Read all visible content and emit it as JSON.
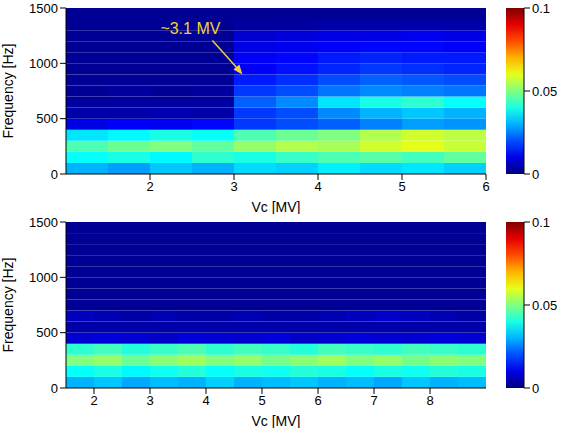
{
  "chart_data": [
    {
      "type": "heatmap",
      "x_label": "Vc [MV]",
      "y_label": "Frequency [Hz]",
      "xlim": [
        1,
        6
      ],
      "xticks": [
        2,
        3,
        4,
        5,
        6
      ],
      "ylim": [
        0,
        1500
      ],
      "yticks": [
        0,
        500,
        1000,
        1500
      ],
      "annotation": {
        "text": "~3.1 MV",
        "x": 3.1,
        "y": 900
      },
      "x_edges": [
        1,
        1.5,
        2,
        2.5,
        3,
        3.5,
        4,
        4.5,
        5,
        5.5,
        6
      ],
      "y_edges": [
        0,
        100,
        200,
        300,
        400,
        500,
        600,
        700,
        800,
        900,
        1000,
        1100,
        1200,
        1300,
        1400,
        1500
      ],
      "cells": [
        [
          0.03,
          0.028,
          0.032,
          0.03,
          0.034,
          0.033,
          0.036,
          0.034,
          0.035,
          0.033
        ],
        [
          0.038,
          0.04,
          0.037,
          0.042,
          0.04,
          0.043,
          0.045,
          0.046,
          0.044,
          0.047
        ],
        [
          0.045,
          0.048,
          0.05,
          0.047,
          0.052,
          0.055,
          0.054,
          0.058,
          0.06,
          0.057
        ],
        [
          0.035,
          0.037,
          0.04,
          0.038,
          0.045,
          0.048,
          0.05,
          0.055,
          0.058,
          0.056
        ],
        [
          0.01,
          0.012,
          0.011,
          0.013,
          0.018,
          0.02,
          0.022,
          0.025,
          0.028,
          0.027
        ],
        [
          0.004,
          0.004,
          0.005,
          0.004,
          0.018,
          0.02,
          0.026,
          0.03,
          0.032,
          0.03
        ],
        [
          0.003,
          0.003,
          0.003,
          0.003,
          0.022,
          0.026,
          0.035,
          0.04,
          0.042,
          0.038
        ],
        [
          0.002,
          0.003,
          0.002,
          0.003,
          0.018,
          0.02,
          0.024,
          0.026,
          0.025,
          0.024
        ],
        [
          0.002,
          0.002,
          0.002,
          0.002,
          0.015,
          0.017,
          0.02,
          0.022,
          0.021,
          0.02
        ],
        [
          0.002,
          0.002,
          0.002,
          0.002,
          0.012,
          0.014,
          0.016,
          0.018,
          0.017,
          0.016
        ],
        [
          0.002,
          0.002,
          0.002,
          0.002,
          0.012,
          0.013,
          0.015,
          0.016,
          0.015,
          0.015
        ],
        [
          0.002,
          0.002,
          0.002,
          0.002,
          0.01,
          0.011,
          0.012,
          0.013,
          0.013,
          0.012
        ],
        [
          0.002,
          0.002,
          0.002,
          0.002,
          0.008,
          0.009,
          0.01,
          0.01,
          0.011,
          0.01
        ],
        [
          0.002,
          0.002,
          0.002,
          0.002,
          0.003,
          0.003,
          0.004,
          0.004,
          0.004,
          0.004
        ],
        [
          0.002,
          0.002,
          0.002,
          0.002,
          0.002,
          0.002,
          0.002,
          0.002,
          0.002,
          0.002
        ]
      ],
      "colorbar": {
        "range": [
          0,
          0.1
        ],
        "ticks": [
          0,
          0.05,
          0.1
        ]
      }
    },
    {
      "type": "heatmap",
      "x_label": "Vc [MV]",
      "y_label": "Frequency [Hz]",
      "xlim": [
        1.5,
        9
      ],
      "xticks": [
        2,
        3,
        4,
        5,
        6,
        7,
        8
      ],
      "ylim": [
        0,
        1500
      ],
      "yticks": [
        0,
        500,
        1000,
        1500
      ],
      "x_edges": [
        1.5,
        2,
        2.5,
        3,
        3.5,
        4,
        4.5,
        5,
        5.5,
        6,
        6.5,
        7,
        7.5,
        8,
        8.5,
        9
      ],
      "y_edges": [
        0,
        100,
        200,
        300,
        400,
        500,
        600,
        700,
        800,
        900,
        1000,
        1100,
        1200,
        1300,
        1400,
        1500
      ],
      "cells": [
        [
          0.03,
          0.032,
          0.029,
          0.031,
          0.03,
          0.033,
          0.03,
          0.031,
          0.032,
          0.03,
          0.031,
          0.029,
          0.032,
          0.03,
          0.031
        ],
        [
          0.038,
          0.04,
          0.037,
          0.039,
          0.041,
          0.038,
          0.04,
          0.039,
          0.041,
          0.04,
          0.038,
          0.04,
          0.039,
          0.041,
          0.04
        ],
        [
          0.05,
          0.052,
          0.048,
          0.051,
          0.053,
          0.05,
          0.052,
          0.049,
          0.051,
          0.053,
          0.05,
          0.052,
          0.049,
          0.051,
          0.05
        ],
        [
          0.042,
          0.044,
          0.041,
          0.043,
          0.045,
          0.042,
          0.044,
          0.043,
          0.041,
          0.044,
          0.043,
          0.042,
          0.044,
          0.043,
          0.042
        ],
        [
          0.008,
          0.009,
          0.008,
          0.007,
          0.009,
          0.008,
          0.008,
          0.009,
          0.007,
          0.008,
          0.009,
          0.008,
          0.008,
          0.009,
          0.008
        ],
        [
          0.004,
          0.004,
          0.004,
          0.004,
          0.004,
          0.004,
          0.004,
          0.004,
          0.004,
          0.004,
          0.004,
          0.004,
          0.004,
          0.004,
          0.004
        ],
        [
          0.006,
          0.005,
          0.004,
          0.005,
          0.004,
          0.004,
          0.005,
          0.004,
          0.004,
          0.005,
          0.006,
          0.007,
          0.006,
          0.005,
          0.004
        ],
        [
          0.002,
          0.002,
          0.002,
          0.002,
          0.002,
          0.002,
          0.002,
          0.002,
          0.002,
          0.002,
          0.002,
          0.002,
          0.002,
          0.002,
          0.002
        ],
        [
          0.002,
          0.002,
          0.002,
          0.002,
          0.002,
          0.002,
          0.002,
          0.002,
          0.002,
          0.002,
          0.002,
          0.002,
          0.002,
          0.002,
          0.002
        ],
        [
          0.002,
          0.002,
          0.002,
          0.002,
          0.002,
          0.002,
          0.002,
          0.002,
          0.002,
          0.002,
          0.002,
          0.002,
          0.002,
          0.002,
          0.002
        ],
        [
          0.002,
          0.002,
          0.002,
          0.002,
          0.002,
          0.002,
          0.002,
          0.002,
          0.002,
          0.002,
          0.002,
          0.002,
          0.002,
          0.002,
          0.002
        ],
        [
          0.002,
          0.002,
          0.002,
          0.002,
          0.002,
          0.002,
          0.002,
          0.002,
          0.002,
          0.002,
          0.002,
          0.002,
          0.002,
          0.002,
          0.002
        ],
        [
          0.002,
          0.002,
          0.002,
          0.002,
          0.002,
          0.002,
          0.002,
          0.002,
          0.002,
          0.002,
          0.002,
          0.002,
          0.002,
          0.002,
          0.002
        ],
        [
          0.002,
          0.002,
          0.002,
          0.002,
          0.002,
          0.002,
          0.002,
          0.002,
          0.002,
          0.002,
          0.002,
          0.002,
          0.002,
          0.002,
          0.002
        ],
        [
          0.002,
          0.002,
          0.002,
          0.002,
          0.002,
          0.002,
          0.002,
          0.002,
          0.002,
          0.002,
          0.002,
          0.002,
          0.002,
          0.002,
          0.002
        ]
      ],
      "colorbar": {
        "range": [
          0,
          0.1
        ],
        "ticks": [
          0,
          0.05,
          0.1
        ]
      }
    }
  ]
}
